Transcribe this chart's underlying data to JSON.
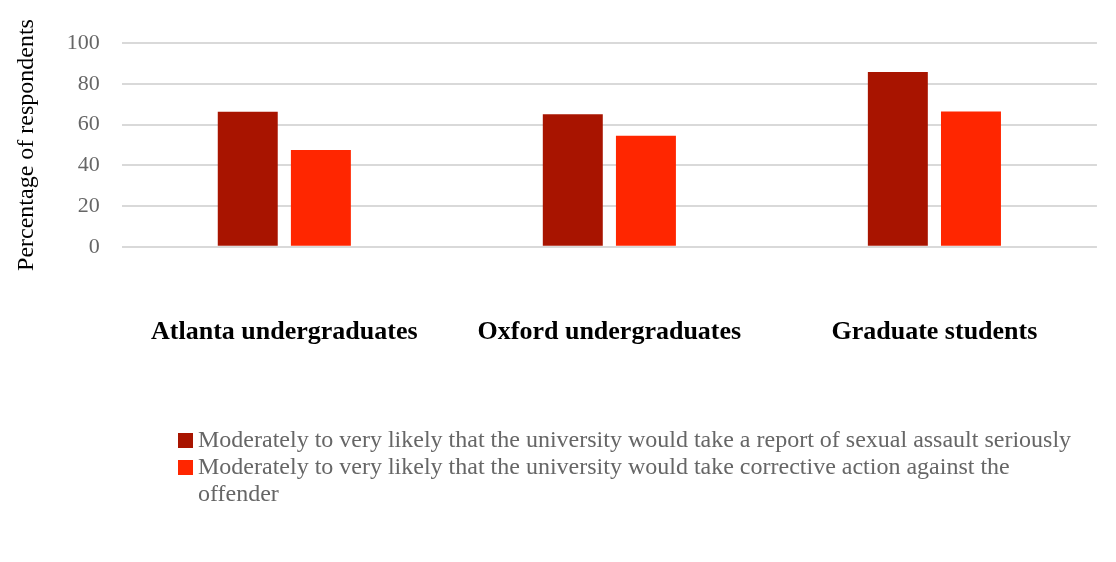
{
  "chart_data": {
    "type": "bar",
    "ylabel": "Percentage of respondents",
    "categories": [
      "Atlanta undergraduates",
      "Oxford undergraduates",
      "Graduate students"
    ],
    "series": [
      {
        "name": "Moderately to very likely that the university would take a report of sexual assault seriously",
        "color": "#a81400",
        "values": [
          66.3,
          65.1,
          85.9
        ]
      },
      {
        "name": "Moderately to very likely that the university would take corrective action against the offender",
        "color": "#ff2600",
        "values": [
          47.6,
          54.5,
          66.5
        ]
      }
    ],
    "ylim": [
      0,
      100
    ],
    "yticks": [
      0,
      20,
      40,
      60,
      80,
      100
    ],
    "grid": "y",
    "legend": "bottom"
  }
}
